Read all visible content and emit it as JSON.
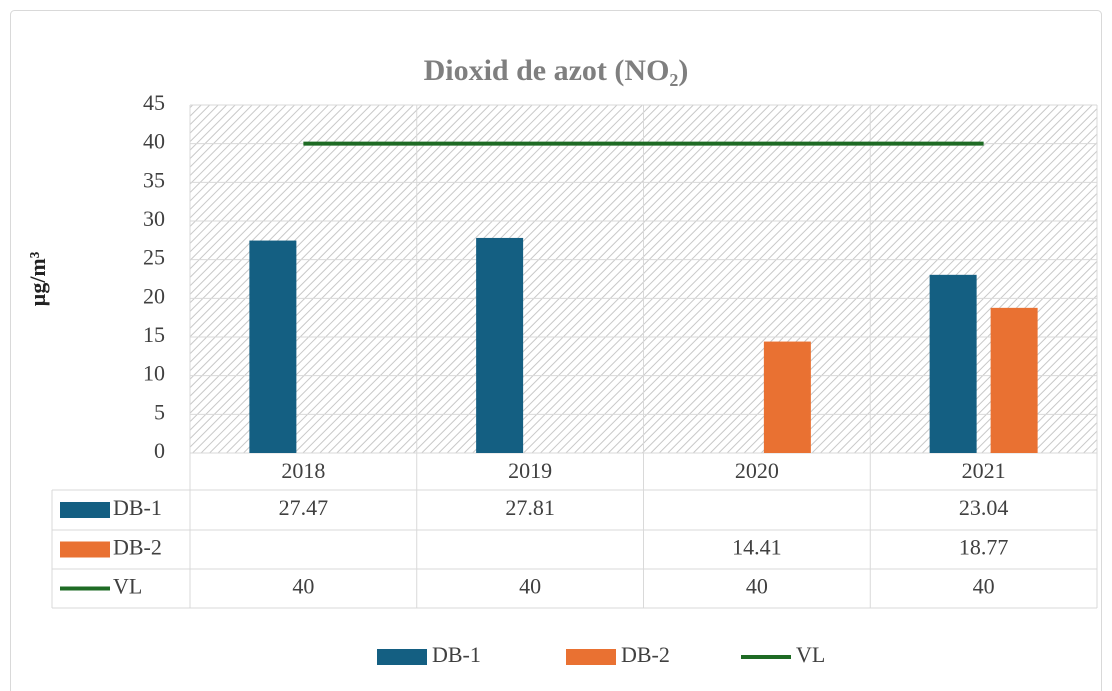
{
  "chart_data": {
    "type": "bar",
    "title": "Dioxid de azot (NO₂)",
    "y_label": "µg/m³",
    "categories": [
      "2018",
      "2019",
      "2020",
      "2021"
    ],
    "series": [
      {
        "name": "DB-1",
        "color": "#145f82",
        "type": "bar",
        "values": [
          27.47,
          27.81,
          null,
          23.04
        ]
      },
      {
        "name": "DB-2",
        "color": "#e97132",
        "type": "bar",
        "values": [
          null,
          null,
          14.41,
          18.77
        ]
      },
      {
        "name": "VL",
        "color": "#1e6b24",
        "type": "line",
        "values": [
          40,
          40,
          40,
          40
        ]
      }
    ],
    "ylim": [
      0,
      45
    ],
    "yticks": [
      0,
      5,
      10,
      15,
      20,
      25,
      30,
      35,
      40,
      45
    ],
    "grid": true,
    "data_table": true,
    "legend": "bottom"
  }
}
